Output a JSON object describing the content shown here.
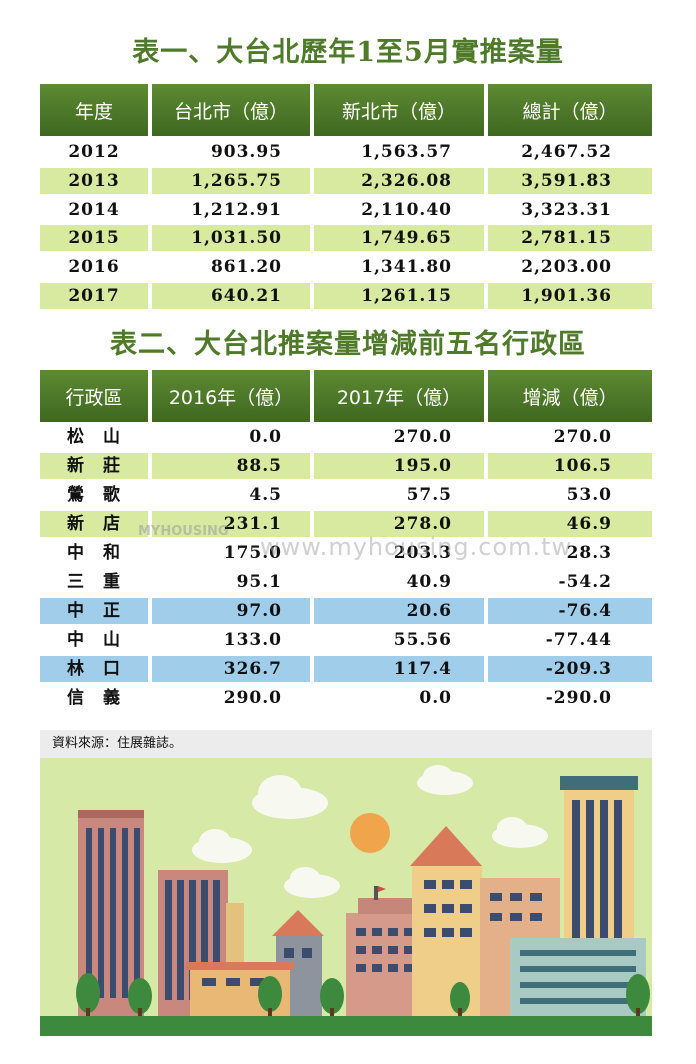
{
  "table1": {
    "title": "表一、大台北歷年1至5月實推案量",
    "headers": [
      "年度",
      "台北市（億）",
      "新北市（億）",
      "總計（億）"
    ],
    "rows": [
      [
        "2012",
        "903.95",
        "1,563.57",
        "2,467.52"
      ],
      [
        "2013",
        "1,265.75",
        "2,326.08",
        "3,591.83"
      ],
      [
        "2014",
        "1,212.91",
        "2,110.40",
        "3,323.31"
      ],
      [
        "2015",
        "1,031.50",
        "1,749.65",
        "2,781.15"
      ],
      [
        "2016",
        "861.20",
        "1,341.80",
        "2,203.00"
      ],
      [
        "2017",
        "640.21",
        "1,261.15",
        "1,901.36"
      ]
    ]
  },
  "table2": {
    "title": "表二、大台北推案量增減前五名行政區",
    "headers": [
      "行政區",
      "2016年（億）",
      "2017年（億）",
      "增減（億）"
    ],
    "rows": [
      [
        "松　山",
        "0.0",
        "270.0",
        "270.0"
      ],
      [
        "新　莊",
        "88.5",
        "195.0",
        "106.5"
      ],
      [
        "鶯　歌",
        "4.5",
        "57.5",
        "53.0"
      ],
      [
        "新　店",
        "231.1",
        "278.0",
        "46.9"
      ],
      [
        "中　和",
        "175.0",
        "203.3",
        "28.3"
      ],
      [
        "三　重",
        "95.1",
        "40.9",
        "-54.2"
      ],
      [
        "中　正",
        "97.0",
        "20.6",
        "-76.4"
      ],
      [
        "中　山",
        "133.0",
        "55.56",
        "-77.44"
      ],
      [
        "林　口",
        "326.7",
        "117.4",
        "-209.3"
      ],
      [
        "信　義",
        "290.0",
        "0.0",
        "-290.0"
      ]
    ]
  },
  "source": "資料來源：住展雜誌。",
  "watermark": "www.myhousing.com.tw",
  "watermark_logo": "MYHOUSING",
  "colors": {
    "title": "#4e7a2a",
    "header": "#4a7526",
    "row_green": "#d8eaa0",
    "row_blue": "#9fcdea",
    "background_scene": "#d7e9a6"
  }
}
